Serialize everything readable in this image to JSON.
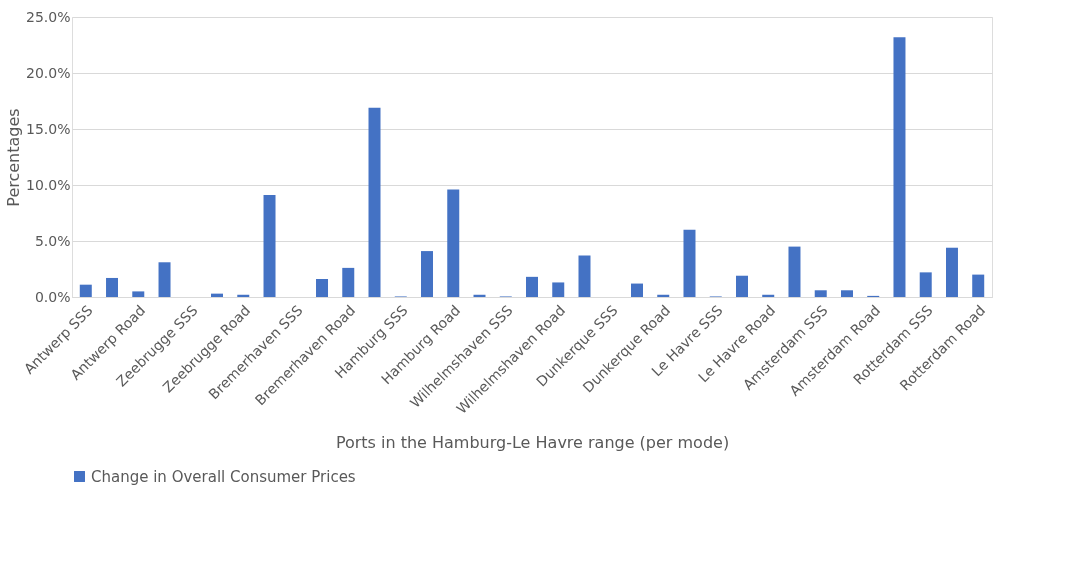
{
  "chart_data": {
    "type": "bar",
    "xlabel": "Ports in the Hamburg-Le Havre range (per mode)",
    "ylabel": "Percentages",
    "categories": [
      "Antwerp SSS",
      null,
      "Antwerp Road",
      null,
      "Zeebrugge SSS",
      null,
      "Zeebrugge Road",
      null,
      "Bremerhaven SSS",
      null,
      "Bremerhaven Road",
      null,
      "Hamburg SSS",
      null,
      "Hamburg Road",
      null,
      "Wilhelmshaven SSS",
      null,
      "Wilhelmshaven Road",
      null,
      "Dunkerque SSS",
      null,
      "Dunkerque Road",
      null,
      "Le Havre SSS",
      null,
      "Le Havre Road",
      null,
      "Amsterdam SSS",
      null,
      "Amsterdam Road",
      null,
      "Rotterdam SSS",
      null,
      "Rotterdam Road"
    ],
    "series": [
      {
        "name": "Change in Overall Consumer Prices",
        "color": "#4472c4",
        "values": [
          1.1,
          1.7,
          0.5,
          3.1,
          0,
          0.3,
          0.2,
          9.1,
          0,
          1.6,
          2.6,
          16.9,
          0.05,
          4.1,
          9.6,
          0.2,
          0.05,
          1.8,
          1.3,
          3.7,
          0,
          1.2,
          0.2,
          6.0,
          0.05,
          1.9,
          0.2,
          4.5,
          0.6,
          0.6,
          0.1,
          23.2,
          2.2,
          4.4,
          2.0
        ]
      }
    ],
    "ylim": [
      0,
      25
    ],
    "yticks": [
      {
        "value": 0,
        "label": "0.0%"
      },
      {
        "value": 5,
        "label": "5.0%"
      },
      {
        "value": 10,
        "label": "10.0%"
      },
      {
        "value": 15,
        "label": "15.0%"
      },
      {
        "value": 20,
        "label": "20.0%"
      },
      {
        "value": 25,
        "label": "25.0%"
      }
    ],
    "grid": "y",
    "legend": "bottom"
  }
}
